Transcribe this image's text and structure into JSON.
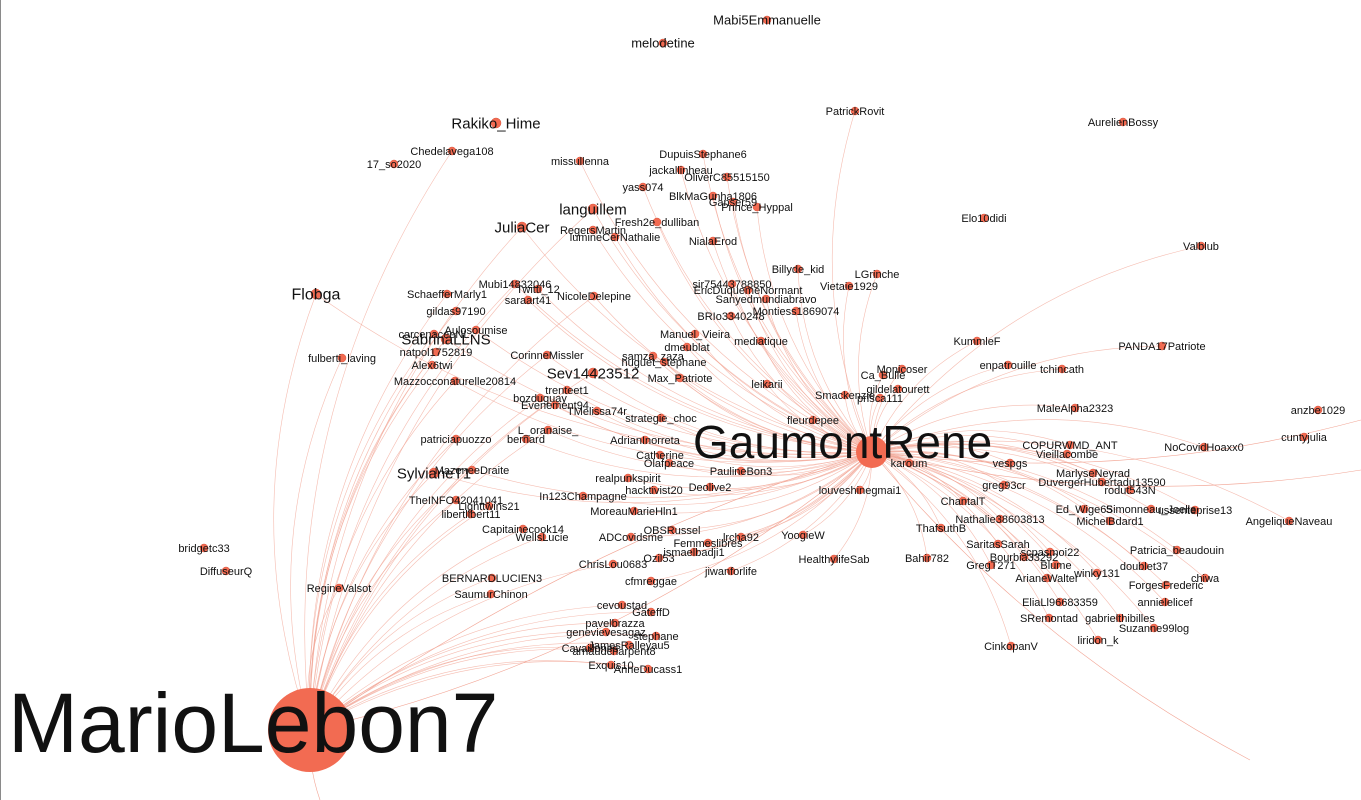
{
  "graph": {
    "colors": {
      "node": "#f26b52",
      "edge": "#f2a595",
      "label": "#111111",
      "background": "#ffffff"
    },
    "hubs": [
      {
        "id": "MarioLebon7",
        "label": "MarioLebon7"
      },
      {
        "id": "GaumontRene",
        "label": "GaumontRene"
      }
    ],
    "nodes": [
      {
        "label": "Mabi5Emmanuelle",
        "links": []
      },
      {
        "label": "melodetine",
        "links": []
      },
      {
        "label": "PatrickRovit",
        "links": [
          "GaumontRene"
        ]
      },
      {
        "label": "AurelienBossy",
        "links": []
      },
      {
        "label": "Rakiko_Hime",
        "links": []
      },
      {
        "label": "Chedelavega108",
        "links": [
          "MarioLebon7"
        ]
      },
      {
        "label": "17_so2020",
        "links": []
      },
      {
        "label": "missullenna",
        "links": [
          "GaumontRene"
        ]
      },
      {
        "label": "DupuisStephane6",
        "links": [
          "GaumontRene"
        ]
      },
      {
        "label": "jackallinheau",
        "links": [
          "GaumontRene"
        ]
      },
      {
        "label": "OliverC85515150",
        "links": [
          "GaumontRene"
        ]
      },
      {
        "label": "yass074",
        "links": [
          "GaumontRene"
        ]
      },
      {
        "label": "BlkMaGunha1806",
        "links": [
          "GaumontRene"
        ]
      },
      {
        "label": "Ganser59",
        "links": [
          "GaumontRene"
        ]
      },
      {
        "label": "Prince_Hyppal",
        "links": [
          "GaumontRene"
        ]
      },
      {
        "label": "Elo10didi",
        "links": []
      },
      {
        "label": "languillem",
        "links": [
          "GaumontRene",
          "MarioLebon7"
        ]
      },
      {
        "label": "Fresh2e_dulliban",
        "links": [
          "GaumontRene"
        ]
      },
      {
        "label": "JuliaCer",
        "links": [
          "GaumontRene",
          "MarioLebon7"
        ]
      },
      {
        "label": "RegersMartin",
        "links": [
          "GaumontRene"
        ]
      },
      {
        "label": "lumineCerNathalie",
        "links": [
          "GaumontRene"
        ]
      },
      {
        "label": "NialaErod",
        "links": [
          "GaumontRene"
        ]
      },
      {
        "label": "Valblub",
        "links": [
          "GaumontRene"
        ]
      },
      {
        "label": "Billyde_kid",
        "links": [
          "GaumontRene"
        ]
      },
      {
        "label": "LGrinche",
        "links": [
          "GaumontRene"
        ]
      },
      {
        "label": "Flobga",
        "links": [
          "MarioLebon7",
          "GaumontRene"
        ]
      },
      {
        "label": "Mubi14832046",
        "links": [
          "GaumontRene",
          "MarioLebon7"
        ]
      },
      {
        "label": "Twitti_12",
        "links": [
          "GaumontRene"
        ]
      },
      {
        "label": "SchaefferMarly1",
        "links": [
          "MarioLebon7"
        ]
      },
      {
        "label": "NicoleDelepine",
        "links": [
          "GaumontRene",
          "MarioLebon7"
        ]
      },
      {
        "label": "saraart41",
        "links": [
          "GaumontRene"
        ]
      },
      {
        "label": "sir75443788850",
        "links": [
          "GaumontRene"
        ]
      },
      {
        "label": "EricDuquemeNormant",
        "links": [
          "GaumontRene"
        ]
      },
      {
        "label": "Sanyedmundiabravo",
        "links": [
          "GaumontRene"
        ]
      },
      {
        "label": "Vietaie1929",
        "links": [
          "GaumontRene"
        ]
      },
      {
        "label": "BRIo3340248",
        "links": [
          "GaumontRene"
        ]
      },
      {
        "label": "Montiess1869074",
        "links": [
          "GaumontRene"
        ]
      },
      {
        "label": "gildas97190",
        "links": [
          "MarioLebon7"
        ]
      },
      {
        "label": "carcenaceeNL",
        "links": [
          "MarioLebon7"
        ]
      },
      {
        "label": "SabrinaLLNS",
        "links": [
          "MarioLebon7",
          "GaumontRene"
        ]
      },
      {
        "label": "Aulosoumise",
        "links": [
          "GaumontRene"
        ]
      },
      {
        "label": "natpol1752819",
        "links": [
          "MarioLebon7"
        ]
      },
      {
        "label": "fulberti_laving",
        "links": [
          "MarioLebon7"
        ]
      },
      {
        "label": "Alex6twi",
        "links": [
          "MarioLebon7"
        ]
      },
      {
        "label": "Mazzocconaturelle20814",
        "links": [
          "MarioLebon7",
          "GaumontRene"
        ]
      },
      {
        "label": "CorinneMissler",
        "links": [
          "GaumontRene",
          "MarioLebon7"
        ]
      },
      {
        "label": "Manuel_Vieira",
        "links": [
          "GaumontRene"
        ]
      },
      {
        "label": "dmeublat",
        "links": [
          "GaumontRene"
        ]
      },
      {
        "label": "mediatique",
        "links": [
          "GaumontRene"
        ]
      },
      {
        "label": "samza_zaza",
        "links": [
          "GaumontRene"
        ]
      },
      {
        "label": "huguet_stephane",
        "links": [
          "GaumontRene"
        ]
      },
      {
        "label": "Sev14423512",
        "links": [
          "GaumontRene",
          "MarioLebon7"
        ]
      },
      {
        "label": "Max_Patriote",
        "links": [
          "GaumontRene"
        ]
      },
      {
        "label": "leikarii",
        "links": [
          "GaumontRene"
        ]
      },
      {
        "label": "KummleF",
        "links": [
          "GaumontRene"
        ]
      },
      {
        "label": "PANDA17Patriote",
        "links": [
          "GaumontRene"
        ]
      },
      {
        "label": "Monicoser",
        "links": [
          "GaumontRene"
        ]
      },
      {
        "label": "enpatrouille",
        "links": [
          "GaumontRene"
        ]
      },
      {
        "label": "Ca_Bulle",
        "links": [
          "GaumontRene"
        ]
      },
      {
        "label": "tchincath",
        "links": [
          "GaumontRene"
        ]
      },
      {
        "label": "gildelatourett",
        "links": [
          "GaumontRene"
        ]
      },
      {
        "label": "Smackenzie",
        "links": [
          "GaumontRene"
        ]
      },
      {
        "label": "prisca111",
        "links": [
          "GaumontRene"
        ]
      },
      {
        "label": "trenteet1",
        "links": [
          "GaumontRene",
          "MarioLebon7"
        ]
      },
      {
        "label": "bozduguay",
        "links": [
          "GaumontRene",
          "MarioLebon7"
        ]
      },
      {
        "label": "Evenement94",
        "links": [
          "GaumontRene"
        ]
      },
      {
        "label": "TMelissa74r",
        "links": [
          "GaumontRene"
        ]
      },
      {
        "label": "strategie_choc",
        "links": [
          "GaumontRene"
        ]
      },
      {
        "label": "fleurdepee",
        "links": [
          "GaumontRene"
        ]
      },
      {
        "label": "MaleAlpha2323",
        "links": [
          "GaumontRene"
        ]
      },
      {
        "label": "anzbe1029",
        "links": []
      },
      {
        "label": "cuntyjulia",
        "links": []
      },
      {
        "label": "L_oranaise_",
        "links": [
          "GaumontRene",
          "MarioLebon7"
        ]
      },
      {
        "label": "patriciapuozzo",
        "links": [
          "MarioLebon7"
        ]
      },
      {
        "label": "bernard",
        "links": [
          "GaumontRene"
        ]
      },
      {
        "label": "AdrianInorreta",
        "links": [
          "GaumontRene"
        ]
      },
      {
        "label": "Catherine",
        "links": [
          "GaumontRene"
        ]
      },
      {
        "label": "Olafpeace",
        "links": [
          "GaumontRene"
        ]
      },
      {
        "label": "PaulineBon3",
        "links": [
          "GaumontRene"
        ]
      },
      {
        "label": "karoum",
        "links": [
          "GaumontRene"
        ]
      },
      {
        "label": "vespgs",
        "links": [
          "GaumontRene"
        ]
      },
      {
        "label": "NoCovidHoaxx0",
        "links": [
          "GaumontRene"
        ]
      },
      {
        "label": "COPURWMD_ANT",
        "links": [
          "GaumontRene"
        ]
      },
      {
        "label": "Vieillacombe",
        "links": [
          "GaumontRene"
        ]
      },
      {
        "label": "SylvianeT1",
        "links": [
          "MarioLebon7",
          "GaumontRene"
        ]
      },
      {
        "label": "MazeneeDraite",
        "links": [
          "GaumontRene",
          "MarioLebon7"
        ]
      },
      {
        "label": "realpunkspirit",
        "links": [
          "GaumontRene"
        ]
      },
      {
        "label": "hacktivist20",
        "links": [
          "GaumontRene"
        ]
      },
      {
        "label": "Deolive2",
        "links": [
          "GaumontRene"
        ]
      },
      {
        "label": "louveshinegmai1",
        "links": [
          "GaumontRene"
        ]
      },
      {
        "label": "MarlyseNeyrad",
        "links": [
          "GaumontRene"
        ]
      },
      {
        "label": "DuvergerHubertadu13590",
        "links": [
          "GaumontRene"
        ]
      },
      {
        "label": "rodut543N",
        "links": [
          "GaumontRene"
        ]
      },
      {
        "label": "TheINFO42041041",
        "links": [
          "MarioLebon7"
        ]
      },
      {
        "label": "Lighttwins21",
        "links": [
          "MarioLebon7"
        ]
      },
      {
        "label": "libertlibert11",
        "links": [
          "MarioLebon7"
        ]
      },
      {
        "label": "In123Champagne",
        "links": [
          "GaumontRene"
        ]
      },
      {
        "label": "MoreauMarieHln1",
        "links": [
          "GaumontRene"
        ]
      },
      {
        "label": "greg93cr",
        "links": [
          "GaumontRene"
        ]
      },
      {
        "label": "ChantalT",
        "links": [
          "GaumontRene"
        ]
      },
      {
        "label": "Ed_Wige65",
        "links": [
          "GaumontRene"
        ]
      },
      {
        "label": "Simonneau_Joelle",
        "links": [
          "GaumontRene"
        ]
      },
      {
        "label": "Nathalie38603813",
        "links": [
          "GaumontRene"
        ]
      },
      {
        "label": "MichelBdard1",
        "links": [
          "GaumontRene"
        ]
      },
      {
        "label": "ThafsuthB",
        "links": [
          "GaumontRene"
        ]
      },
      {
        "label": "AngeliqueNaveau",
        "links": [
          "GaumontRene"
        ]
      },
      {
        "label": "Capitainecook14",
        "links": [
          "MarioLebon7"
        ]
      },
      {
        "label": "OBSRussel",
        "links": [
          "GaumontRene"
        ]
      },
      {
        "label": "WellsLucie",
        "links": [
          "MarioLebon7"
        ]
      },
      {
        "label": "ADCovidsme",
        "links": [
          "GaumontRene"
        ]
      },
      {
        "label": "YoogieW",
        "links": [
          "GaumontRene"
        ]
      },
      {
        "label": "Femmeslibres",
        "links": [
          "GaumontRene"
        ]
      },
      {
        "label": "lrcha92",
        "links": [
          "GaumontRene"
        ]
      },
      {
        "label": "Bourbia33292",
        "links": [
          "GaumontRene"
        ]
      },
      {
        "label": "SaritasSarah",
        "links": [
          "GaumontRene"
        ]
      },
      {
        "label": "ussenteprise13",
        "links": [
          "GaumontRene"
        ]
      },
      {
        "label": "Patricia_beaudouin",
        "links": [
          "GaumontRene"
        ]
      },
      {
        "label": "bridgetc33",
        "links": []
      },
      {
        "label": "DiffuseurQ",
        "links": []
      },
      {
        "label": "ChrisLou0683",
        "links": [
          "MarioLebon7"
        ]
      },
      {
        "label": "Ozil53",
        "links": [
          "GaumontRene"
        ]
      },
      {
        "label": "ismaelbadji1",
        "links": [
          "GaumontRene"
        ]
      },
      {
        "label": "HealthylifeSab",
        "links": [
          "GaumontRene"
        ]
      },
      {
        "label": "Bahir782",
        "links": [
          "GaumontRene"
        ]
      },
      {
        "label": "scpasmoi22",
        "links": [
          "GaumontRene"
        ]
      },
      {
        "label": "GregT271",
        "links": [
          "GaumontRene"
        ]
      },
      {
        "label": "Blume",
        "links": [
          "GaumontRene"
        ]
      },
      {
        "label": "doublet37",
        "links": [
          "GaumontRene"
        ]
      },
      {
        "label": "RegineValsot",
        "links": [
          "MarioLebon7"
        ]
      },
      {
        "label": "BERNARDLUCIEN3",
        "links": [
          "MarioLebon7"
        ]
      },
      {
        "label": "cfmreggae",
        "links": [
          "GaumontRene"
        ]
      },
      {
        "label": "jiwanforlife",
        "links": [
          "GaumontRene"
        ]
      },
      {
        "label": "ArianeWalter",
        "links": [
          "GaumontRene"
        ]
      },
      {
        "label": "winky131",
        "links": [
          "GaumontRene"
        ]
      },
      {
        "label": "ForgesFrederic",
        "links": [
          "GaumontRene"
        ]
      },
      {
        "label": "chiwa",
        "links": [
          "GaumontRene"
        ]
      },
      {
        "label": "SaumurChinon",
        "links": [
          "MarioLebon7"
        ]
      },
      {
        "label": "cevoustad",
        "links": [
          "MarioLebon7"
        ]
      },
      {
        "label": "GateffD",
        "links": [
          "MarioLebon7"
        ]
      },
      {
        "label": "EliaLl96683359",
        "links": [
          "GaumontRene"
        ]
      },
      {
        "label": "annielelicef",
        "links": [
          "GaumontRene"
        ]
      },
      {
        "label": "pavelbrazza",
        "links": [
          "MarioLebon7"
        ]
      },
      {
        "label": "genevievesagaz",
        "links": [
          "MarioLebon7"
        ]
      },
      {
        "label": "stephane",
        "links": [
          "MarioLebon7"
        ]
      },
      {
        "label": "JamesRalleyau5",
        "links": [
          "MarioLebon7"
        ]
      },
      {
        "label": "SRemontad",
        "links": [
          "GaumontRene"
        ]
      },
      {
        "label": "Cavaillones",
        "links": [
          "MarioLebon7"
        ]
      },
      {
        "label": "arnaudcharpent8",
        "links": [
          "MarioLebon7"
        ]
      },
      {
        "label": "gabrielthibilles",
        "links": [
          "GaumontRene"
        ]
      },
      {
        "label": "Suzanne99log",
        "links": [
          "GaumontRene"
        ]
      },
      {
        "label": "CinkopanV",
        "links": [
          "GaumontRene"
        ]
      },
      {
        "label": "liridon_k",
        "links": [
          "GaumontRene"
        ]
      },
      {
        "label": "Exquis10",
        "links": [
          "MarioLebon7"
        ]
      },
      {
        "label": "AnneDucass1",
        "links": [
          "MarioLebon7"
        ]
      }
    ]
  }
}
